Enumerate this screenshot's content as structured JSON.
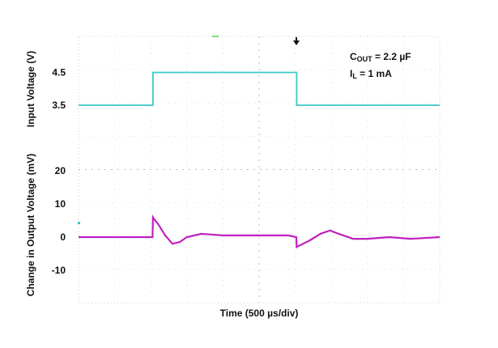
{
  "chart_data": {
    "type": "line",
    "title": "",
    "xlabel": "Time (500 µs/div)",
    "x_unit": "µs",
    "xlim": [
      0,
      5000
    ],
    "grid": true,
    "annotations": [
      {
        "main": "C",
        "sub": "OUT",
        "rest": " = 2.2 µF"
      },
      {
        "main": "I",
        "sub": "L",
        "rest": " = 1 mA"
      }
    ],
    "panels": [
      {
        "ylabel": "Input Voltage (V)",
        "ylim": [
          2.5,
          6.5
        ],
        "ticks": [
          {
            "value": 3.5,
            "label": "3.5"
          },
          {
            "value": 4.5,
            "label": "4.5"
          }
        ],
        "color": "#3cc8c8",
        "x": [
          0,
          1030,
          1030,
          3020,
          3020,
          5000
        ],
        "y": [
          3.5,
          3.5,
          4.5,
          4.5,
          3.5,
          3.5
        ]
      },
      {
        "ylabel": "Change in Output Voltage (mV)",
        "ylim": [
          -20,
          20
        ],
        "ticks": [
          {
            "value": 20,
            "label": "20"
          },
          {
            "value": 10,
            "label": "10"
          },
          {
            "value": 0,
            "label": "0"
          },
          {
            "value": -10,
            "label": "-10"
          }
        ],
        "color": "#c020c0",
        "x": [
          0,
          500,
          1025,
          1030,
          1060,
          1100,
          1200,
          1300,
          1400,
          1500,
          1700,
          2000,
          2300,
          2600,
          2900,
          3015,
          3020,
          3060,
          3200,
          3350,
          3480,
          3600,
          3800,
          4000,
          4300,
          4600,
          5000
        ],
        "y": [
          0,
          0,
          0,
          6,
          5,
          4,
          0.5,
          -2,
          -1.5,
          0,
          1,
          0.5,
          0.5,
          0.5,
          0.5,
          0,
          -3,
          -2.5,
          -1,
          1,
          2,
          1,
          -0.5,
          -0.5,
          0,
          -0.5,
          0
        ]
      }
    ]
  }
}
